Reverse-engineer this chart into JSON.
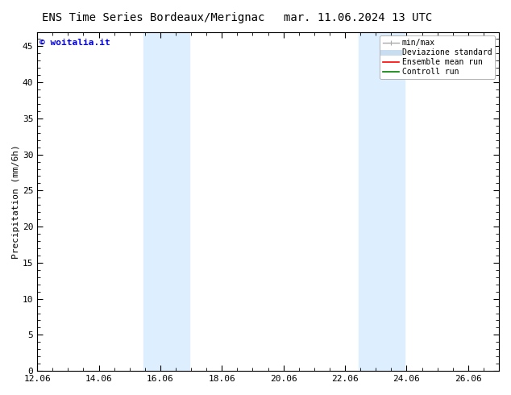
{
  "title_left": "ENS Time Series Bordeaux/Merignac",
  "title_right": "mar. 11.06.2024 13 UTC",
  "ylabel": "Precipitation (mm/6h)",
  "watermark": "© woitalia.it",
  "watermark_color": "#0000dd",
  "xmin": 12.06,
  "xmax": 27.06,
  "ymin": 0,
  "ymax": 47,
  "yticks": [
    0,
    5,
    10,
    15,
    20,
    25,
    30,
    35,
    40,
    45
  ],
  "xtick_labels": [
    "12.06",
    "14.06",
    "16.06",
    "18.06",
    "20.06",
    "22.06",
    "24.06",
    "26.06"
  ],
  "xtick_positions": [
    12.06,
    14.06,
    16.06,
    18.06,
    20.06,
    22.06,
    24.06,
    26.06
  ],
  "shaded_bands": [
    {
      "xmin": 15.5,
      "xmax": 17.0,
      "color": "#ddeeff"
    },
    {
      "xmin": 22.5,
      "xmax": 24.0,
      "color": "#ddeeff"
    }
  ],
  "legend_entries": [
    {
      "label": "min/max",
      "color": "#aaaaaa",
      "lw": 1.0,
      "style": "|-|"
    },
    {
      "label": "Deviazione standard",
      "color": "#c8ddf0",
      "lw": 5,
      "style": "-"
    },
    {
      "label": "Ensemble mean run",
      "color": "#ff0000",
      "lw": 1.2,
      "style": "-"
    },
    {
      "label": "Controll run",
      "color": "#008000",
      "lw": 1.2,
      "style": "-"
    }
  ],
  "bg_color": "#ffffff",
  "plot_bg_color": "#ffffff",
  "title_fontsize": 10,
  "tick_fontsize": 8,
  "ylabel_fontsize": 8,
  "legend_fontsize": 7,
  "watermark_fontsize": 8
}
